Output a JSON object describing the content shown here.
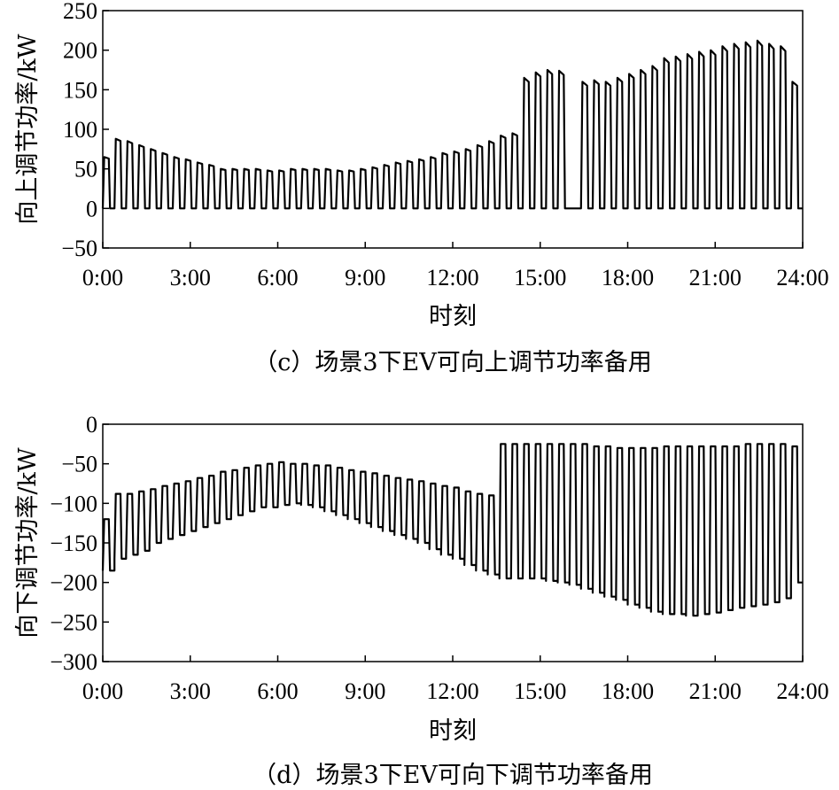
{
  "chart_data": [
    {
      "type": "line",
      "caption": "（c）场景3下EV可向上调节功率备用",
      "xlabel": "时刻",
      "ylabel": "向上调节功率/kW",
      "x_ticks": [
        "0:00",
        "3:00",
        "6:00",
        "9:00",
        "12:00",
        "15:00",
        "18:00",
        "21:00",
        "24:00"
      ],
      "y_ticks": [
        250,
        200,
        150,
        100,
        50,
        0,
        -50
      ],
      "xlim": [
        0,
        24
      ],
      "ylim": [
        -50,
        250
      ],
      "series": [
        {
          "cycle_hours": 0.4,
          "low_values": [
            0,
            0,
            0,
            0,
            0,
            0,
            0,
            0,
            0,
            0,
            0,
            0,
            0,
            0,
            0,
            0,
            0,
            0,
            0,
            0,
            0,
            0,
            0,
            0,
            0,
            0,
            0,
            0,
            0,
            0,
            0,
            0,
            0,
            0,
            0,
            0,
            0,
            0,
            0,
            0,
            0,
            0,
            0,
            0,
            0,
            0,
            0,
            0,
            0,
            0,
            0,
            0,
            0,
            0,
            0,
            0,
            0,
            0,
            0,
            0
          ],
          "high_values": [
            65,
            88,
            85,
            80,
            75,
            70,
            65,
            62,
            58,
            55,
            50,
            50,
            50,
            50,
            48,
            48,
            50,
            50,
            50,
            50,
            48,
            48,
            50,
            52,
            55,
            58,
            60,
            62,
            65,
            70,
            72,
            75,
            80,
            85,
            92,
            95,
            165,
            172,
            175,
            174,
            0,
            160,
            162,
            160,
            165,
            170,
            175,
            180,
            190,
            192,
            195,
            198,
            200,
            205,
            208,
            210,
            212,
            208,
            205,
            160
          ]
        }
      ]
    },
    {
      "type": "line",
      "caption": "（d）场景3下EV可向下调节功率备用",
      "xlabel": "时刻",
      "ylabel": "向下调节功率/kW",
      "x_ticks": [
        "0:00",
        "3:00",
        "6:00",
        "9:00",
        "12:00",
        "15:00",
        "18:00",
        "21:00",
        "24:00"
      ],
      "y_ticks": [
        0,
        -50,
        -100,
        -150,
        -200,
        -250,
        -300
      ],
      "xlim": [
        0,
        24
      ],
      "ylim": [
        -300,
        0
      ],
      "series": [
        {
          "cycle_hours": 0.4,
          "high_values": [
            -120,
            -88,
            -88,
            -85,
            -82,
            -78,
            -75,
            -72,
            -68,
            -65,
            -60,
            -58,
            -55,
            -52,
            -50,
            -48,
            -50,
            -50,
            -52,
            -52,
            -55,
            -58,
            -60,
            -62,
            -65,
            -68,
            -70,
            -72,
            -75,
            -78,
            -80,
            -85,
            -88,
            -90,
            -25,
            -25,
            -25,
            -25,
            -25,
            -25,
            -25,
            -25,
            -28,
            -28,
            -30,
            -30,
            -30,
            -30,
            -28,
            -28,
            -28,
            -28,
            -28,
            -28,
            -28,
            -25,
            -25,
            -25,
            -25,
            -28
          ],
          "low_values": [
            -185,
            -170,
            -165,
            -160,
            -150,
            -145,
            -140,
            -135,
            -130,
            -125,
            -120,
            -115,
            -110,
            -105,
            -105,
            -102,
            -100,
            -102,
            -105,
            -110,
            -115,
            -120,
            -125,
            -130,
            -135,
            -140,
            -145,
            -150,
            -158,
            -165,
            -170,
            -178,
            -185,
            -190,
            -195,
            -195,
            -195,
            -195,
            -198,
            -200,
            -203,
            -208,
            -213,
            -218,
            -222,
            -228,
            -232,
            -237,
            -240,
            -240,
            -242,
            -240,
            -238,
            -235,
            -232,
            -230,
            -228,
            -225,
            -220,
            -200
          ]
        }
      ]
    }
  ]
}
